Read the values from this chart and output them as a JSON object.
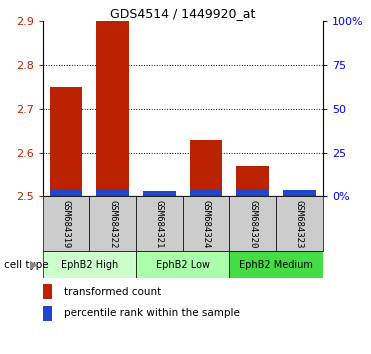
{
  "title": "GDS4514 / 1449920_at",
  "samples": [
    "GSM684319",
    "GSM684322",
    "GSM684321",
    "GSM684324",
    "GSM684320",
    "GSM684323"
  ],
  "red_values": [
    2.75,
    2.9,
    2.501,
    2.63,
    2.57,
    2.501
  ],
  "blue_values": [
    2.517,
    2.518,
    2.513,
    2.515,
    2.517,
    2.514
  ],
  "ymin": 2.5,
  "ymax": 2.9,
  "y_ticks": [
    2.5,
    2.6,
    2.7,
    2.8,
    2.9
  ],
  "right_y_ticks": [
    0,
    25,
    50,
    75,
    100
  ],
  "red_color": "#bb2200",
  "blue_color": "#2244cc",
  "bar_width": 0.7,
  "sample_bg_color": "#cccccc",
  "groups": [
    {
      "label": "EphB2 High",
      "indices": [
        0,
        1
      ],
      "color": "#ccffcc"
    },
    {
      "label": "EphB2 Low",
      "indices": [
        2,
        3
      ],
      "color": "#aaffaa"
    },
    {
      "label": "EphB2 Medium",
      "indices": [
        4,
        5
      ],
      "color": "#44dd44"
    }
  ],
  "cell_type_label": "cell type",
  "legend_items": [
    {
      "label": "transformed count",
      "color": "#bb2200"
    },
    {
      "label": "percentile rank within the sample",
      "color": "#2244cc"
    }
  ]
}
